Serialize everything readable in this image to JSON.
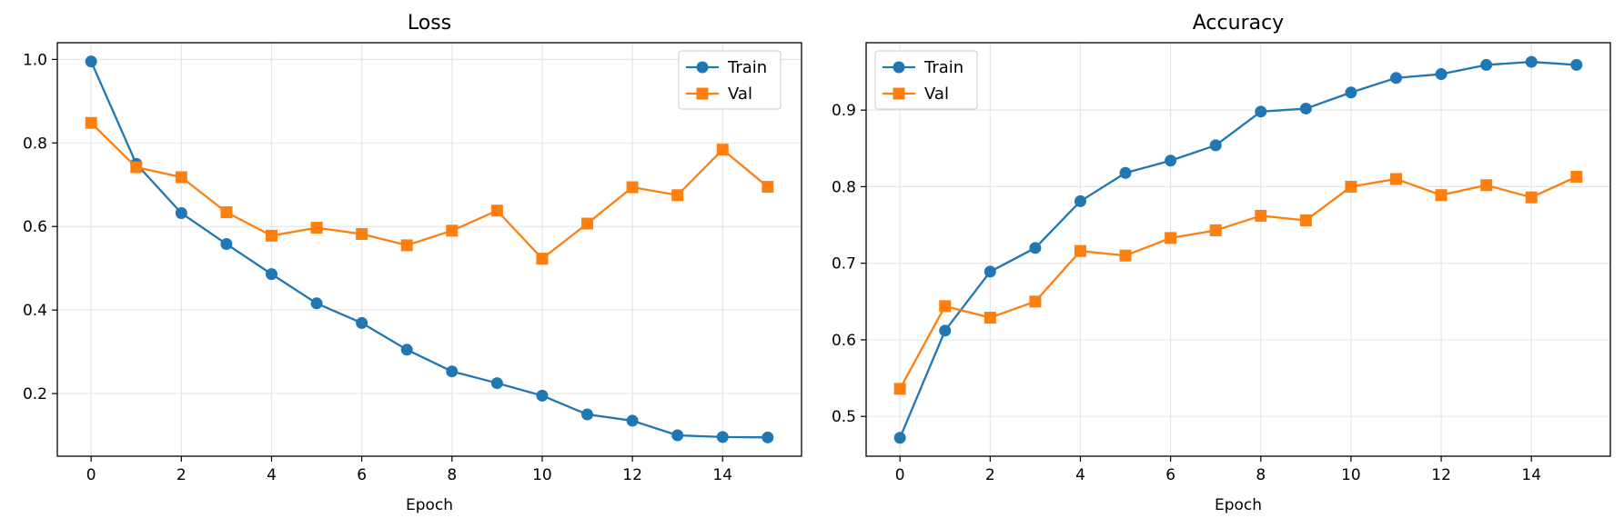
{
  "chart_data": [
    {
      "type": "line",
      "title": "Loss",
      "xlabel": "Epoch",
      "ylabel": "",
      "xlim": [
        -0.75,
        15.75
      ],
      "ylim": [
        0.05,
        1.04
      ],
      "xticks": [
        0,
        2,
        4,
        6,
        8,
        10,
        12,
        14
      ],
      "xtick_labels": [
        "0",
        "2",
        "4",
        "6",
        "8",
        "10",
        "12",
        "14"
      ],
      "yticks": [
        0.2,
        0.4,
        0.6,
        0.8,
        1.0
      ],
      "ytick_labels": [
        "0.2",
        "0.4",
        "0.6",
        "0.8",
        "1.0"
      ],
      "grid": true,
      "legend_position": "upper right",
      "x": [
        0,
        1,
        2,
        3,
        4,
        5,
        6,
        7,
        8,
        9,
        10,
        11,
        12,
        13,
        14,
        15
      ],
      "series": [
        {
          "name": "Train",
          "color": "#1f77b4",
          "marker": "circle",
          "values": [
            0.995,
            0.75,
            0.632,
            0.558,
            0.486,
            0.416,
            0.369,
            0.305,
            0.253,
            0.225,
            0.195,
            0.15,
            0.135,
            0.1,
            0.096,
            0.095
          ]
        },
        {
          "name": "Val",
          "color": "#ff7f0e",
          "marker": "square",
          "values": [
            0.848,
            0.742,
            0.718,
            0.634,
            0.578,
            0.597,
            0.582,
            0.555,
            0.59,
            0.638,
            0.523,
            0.607,
            0.694,
            0.675,
            0.784,
            0.695
          ]
        }
      ]
    },
    {
      "type": "line",
      "title": "Accuracy",
      "xlabel": "Epoch",
      "ylabel": "",
      "xlim": [
        -0.75,
        15.75
      ],
      "ylim": [
        0.448,
        0.988
      ],
      "xticks": [
        0,
        2,
        4,
        6,
        8,
        10,
        12,
        14
      ],
      "xtick_labels": [
        "0",
        "2",
        "4",
        "6",
        "8",
        "10",
        "12",
        "14"
      ],
      "yticks": [
        0.5,
        0.6,
        0.7,
        0.8,
        0.9
      ],
      "ytick_labels": [
        "0.5",
        "0.6",
        "0.7",
        "0.8",
        "0.9"
      ],
      "grid": true,
      "legend_position": "upper left",
      "x": [
        0,
        1,
        2,
        3,
        4,
        5,
        6,
        7,
        8,
        9,
        10,
        11,
        12,
        13,
        14,
        15
      ],
      "series": [
        {
          "name": "Train",
          "color": "#1f77b4",
          "marker": "circle",
          "values": [
            0.472,
            0.612,
            0.689,
            0.72,
            0.781,
            0.818,
            0.834,
            0.854,
            0.898,
            0.902,
            0.923,
            0.942,
            0.947,
            0.959,
            0.963,
            0.959
          ]
        },
        {
          "name": "Val",
          "color": "#ff7f0e",
          "marker": "square",
          "values": [
            0.536,
            0.644,
            0.629,
            0.65,
            0.716,
            0.71,
            0.733,
            0.743,
            0.762,
            0.756,
            0.8,
            0.81,
            0.789,
            0.802,
            0.786,
            0.813
          ]
        }
      ]
    }
  ]
}
